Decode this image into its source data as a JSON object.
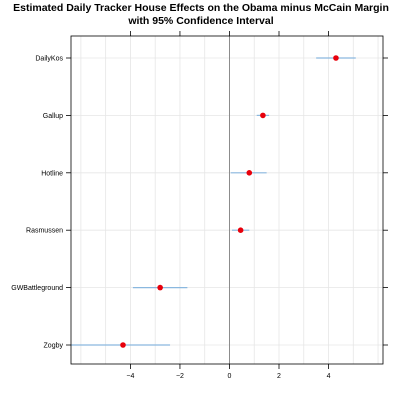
{
  "chart_data": {
    "type": "dotplot",
    "title": "Estimated Daily Tracker House Effects on the Obama minus McCain Margin",
    "subtitle": "with 95% Confidence Interval",
    "xlabel": "",
    "ylabel": "",
    "xlim": [
      -6.4,
      6.2
    ],
    "x_ticks": [
      -4,
      -2,
      0,
      2,
      4
    ],
    "x_tick_labels": [
      "−4",
      "−2",
      "0",
      "2",
      "4"
    ],
    "grid": true,
    "reference_line": 0,
    "colors": {
      "point": "#e8000b",
      "interval": "#8ab8df",
      "grid": "#e6e6e6",
      "refline": "#808080"
    },
    "rows": [
      {
        "label": "DailyKos",
        "estimate": 4.3,
        "lower": 3.5,
        "upper": 5.1
      },
      {
        "label": "Gallup",
        "estimate": 1.35,
        "lower": 1.1,
        "upper": 1.6
      },
      {
        "label": "Hotline",
        "estimate": 0.8,
        "lower": 0.05,
        "upper": 1.5
      },
      {
        "label": "Rasmussen",
        "estimate": 0.45,
        "lower": 0.1,
        "upper": 0.8
      },
      {
        "label": "GWBattleground",
        "estimate": -2.8,
        "lower": -3.9,
        "upper": -1.7
      },
      {
        "label": "Zogby",
        "estimate": -4.3,
        "lower": -6.4,
        "upper": -2.4
      }
    ]
  }
}
